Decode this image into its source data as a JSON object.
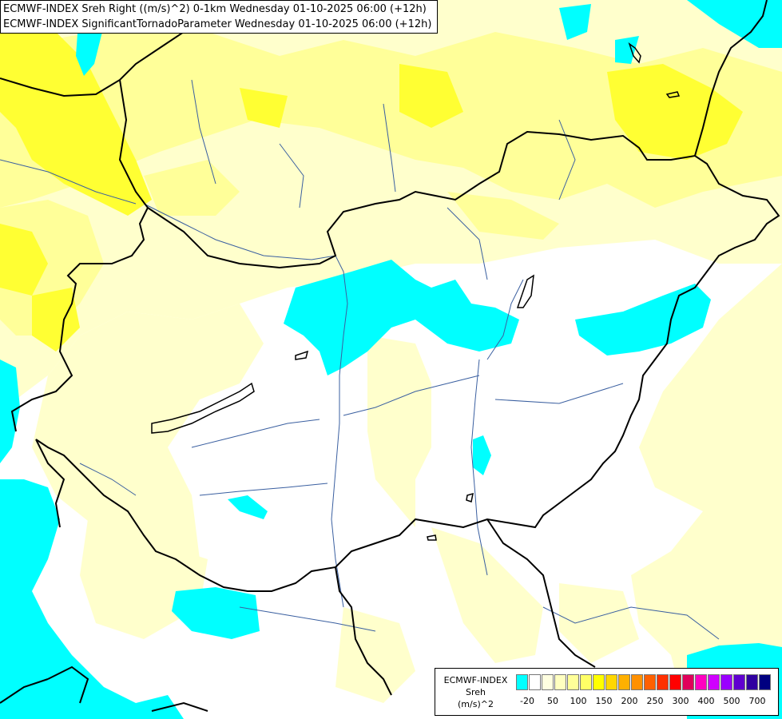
{
  "header": {
    "line1": "ECMWF-INDEX Sreh Right ((m/s)^2) 0-1km Wednesday 01-10-2025 06:00 (+12h)",
    "line2": "ECMWF-INDEX SignificantTornadoParameter Wednesday 01-10-2025 06:00 (+12h)"
  },
  "legend": {
    "line1": "ECMWF-INDEX",
    "line2": "Sreh",
    "line3": "(m/s)^2",
    "colors": [
      "#00ffff",
      "#ffffff",
      "#ffffe0",
      "#ffffc0",
      "#ffff99",
      "#ffff66",
      "#ffff00",
      "#ffd700",
      "#ffb000",
      "#ff9000",
      "#ff6000",
      "#ff3000",
      "#ff0000",
      "#e0005a",
      "#ff00c0",
      "#d000ff",
      "#9a00ff",
      "#6000d0",
      "#3000a0",
      "#000080"
    ],
    "ticks": [
      "-20",
      "50",
      "100",
      "150",
      "200",
      "250",
      "300",
      "400",
      "500",
      "700"
    ]
  },
  "colors": {
    "cyan": "#00ffff",
    "pale_yellow": "#ffffcc",
    "light_yellow": "#ffff99",
    "yellow": "#ffff33",
    "border": "#000000",
    "river": "#3a5fa0"
  }
}
